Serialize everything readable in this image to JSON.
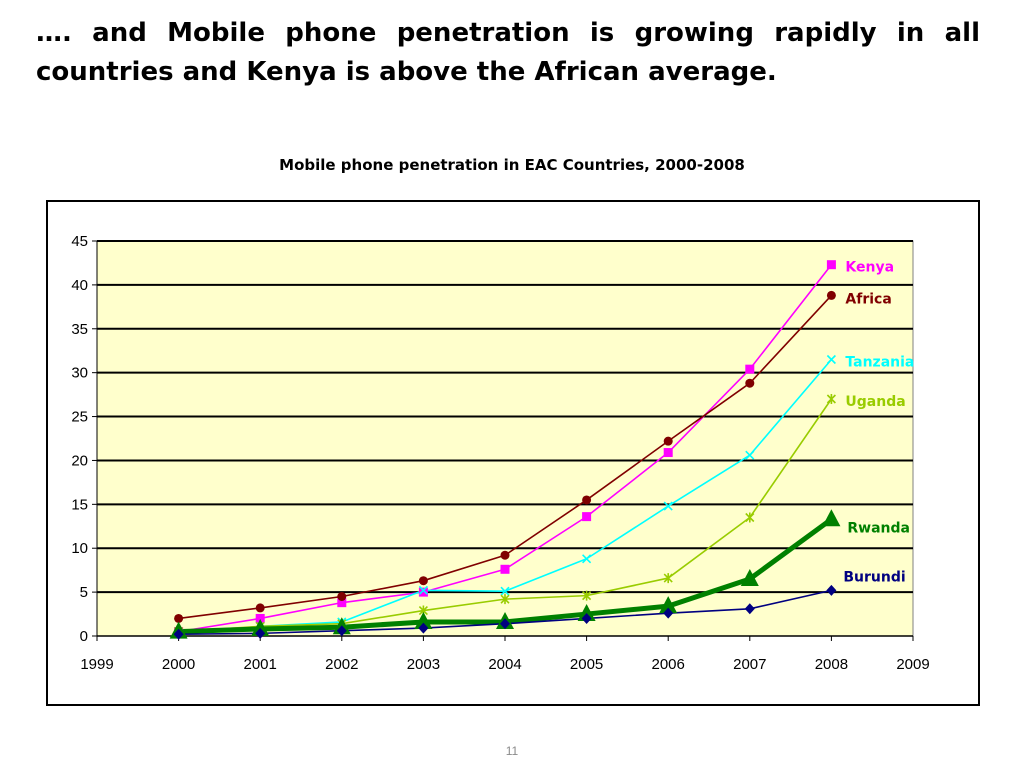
{
  "slide": {
    "heading": "…. and Mobile phone penetration is growing rapidly in all countries and Kenya is above the African average.",
    "page_number": "11"
  },
  "chart_data": {
    "type": "line",
    "title": "Mobile phone penetration in EAC Countries, 2000-2008",
    "xlabel": "",
    "ylabel": "",
    "xlim": [
      1999,
      2009
    ],
    "ylim": [
      0,
      45
    ],
    "x_ticks": [
      "1999",
      "2000",
      "2001",
      "2002",
      "2003",
      "2004",
      "2005",
      "2006",
      "2007",
      "2008",
      "2009"
    ],
    "y_ticks": [
      "0",
      "5",
      "10",
      "15",
      "20",
      "25",
      "30",
      "35",
      "40",
      "45"
    ],
    "grid": "horizontal",
    "plot_background": "#ffffcc",
    "legend": "labels at line ends",
    "x": [
      2000,
      2001,
      2002,
      2003,
      2004,
      2005,
      2006,
      2007,
      2008
    ],
    "series": [
      {
        "name": "Kenya",
        "color": "#ff00ff",
        "marker": "square",
        "values": [
          0.5,
          2.0,
          3.8,
          5.0,
          7.6,
          13.6,
          20.9,
          30.4,
          42.3
        ]
      },
      {
        "name": "Africa",
        "color": "#800000",
        "marker": "circle",
        "values": [
          2.0,
          3.2,
          4.5,
          6.3,
          9.2,
          15.5,
          22.2,
          28.8,
          38.8
        ]
      },
      {
        "name": "Tanzania",
        "color": "#00ffff",
        "marker": "x",
        "values": [
          0.3,
          1.1,
          1.6,
          5.2,
          5.1,
          8.8,
          14.8,
          20.6,
          31.5
        ]
      },
      {
        "name": "Uganda",
        "color": "#99cc00",
        "marker": "star",
        "values": [
          0.5,
          1.1,
          1.4,
          2.9,
          4.2,
          4.6,
          6.6,
          13.5,
          27.0
        ]
      },
      {
        "name": "Rwanda",
        "color": "#008000",
        "marker": "triangle",
        "values": [
          0.5,
          0.8,
          1.0,
          1.6,
          1.6,
          2.5,
          3.4,
          6.5,
          13.3
        ]
      },
      {
        "name": "Burundi",
        "color": "#000080",
        "marker": "diamond",
        "values": [
          0.2,
          0.3,
          0.6,
          0.9,
          1.4,
          2.0,
          2.6,
          3.1,
          5.2
        ]
      }
    ]
  }
}
